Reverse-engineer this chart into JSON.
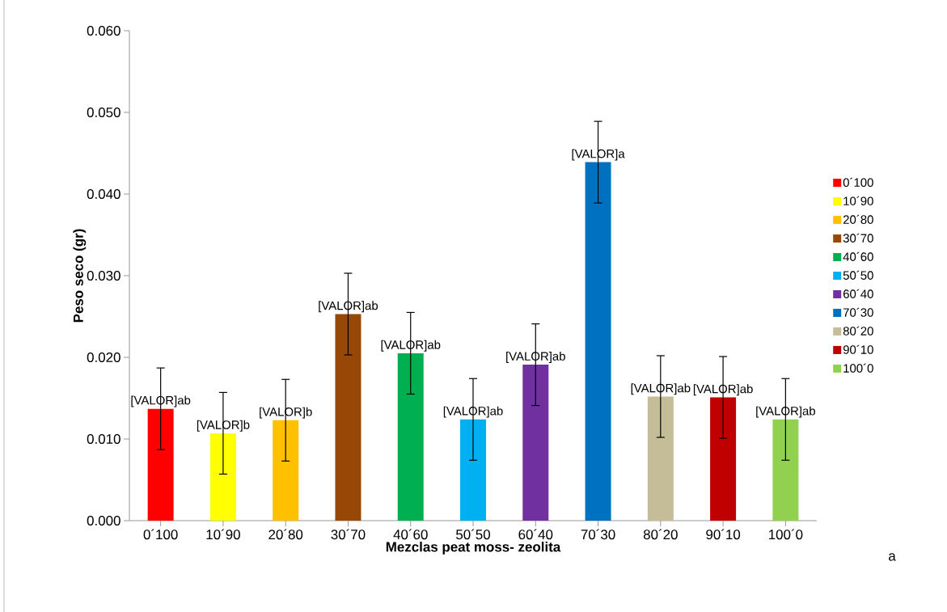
{
  "chart_data": {
    "type": "bar",
    "xlabel": "Mezclas peat moss- zeolita",
    "ylabel": "Peso seco (gr)",
    "categories": [
      "0´100",
      "10´90",
      "20´80",
      "30´70",
      "40´60",
      "50´50",
      "60´40",
      "70´30",
      "80´20",
      "90´10",
      "100´0"
    ],
    "series": [
      {
        "name": "0´100",
        "color": "#ff0000",
        "values": [
          0.0137,
          null,
          null,
          null,
          null,
          null,
          null,
          null,
          null,
          null,
          null
        ],
        "errors": [
          0.005,
          null,
          null,
          null,
          null,
          null,
          null,
          null,
          null,
          null,
          null
        ],
        "value_labels": [
          "[VALOR]ab",
          null,
          null,
          null,
          null,
          null,
          null,
          null,
          null,
          null,
          null
        ]
      },
      {
        "name": "10´90",
        "color": "#ffff00",
        "values": [
          null,
          0.0107,
          null,
          null,
          null,
          null,
          null,
          null,
          null,
          null,
          null
        ],
        "errors": [
          null,
          0.005,
          null,
          null,
          null,
          null,
          null,
          null,
          null,
          null,
          null
        ],
        "value_labels": [
          null,
          "[VALOR]b",
          null,
          null,
          null,
          null,
          null,
          null,
          null,
          null,
          null
        ]
      },
      {
        "name": "20´80",
        "color": "#ffc000",
        "values": [
          null,
          null,
          0.0123,
          null,
          null,
          null,
          null,
          null,
          null,
          null,
          null
        ],
        "errors": [
          null,
          null,
          0.005,
          null,
          null,
          null,
          null,
          null,
          null,
          null,
          null
        ],
        "value_labels": [
          null,
          null,
          "[VALOR]b",
          null,
          null,
          null,
          null,
          null,
          null,
          null,
          null
        ]
      },
      {
        "name": "30´70",
        "color": "#974706",
        "values": [
          null,
          null,
          null,
          0.0253,
          null,
          null,
          null,
          null,
          null,
          null,
          null
        ],
        "errors": [
          null,
          null,
          null,
          0.005,
          null,
          null,
          null,
          null,
          null,
          null,
          null
        ],
        "value_labels": [
          null,
          null,
          null,
          "[VALOR]ab",
          null,
          null,
          null,
          null,
          null,
          null,
          null
        ]
      },
      {
        "name": "40´60",
        "color": "#00b050",
        "values": [
          null,
          null,
          null,
          null,
          0.0205,
          null,
          null,
          null,
          null,
          null,
          null
        ],
        "errors": [
          null,
          null,
          null,
          null,
          0.005,
          null,
          null,
          null,
          null,
          null,
          null
        ],
        "value_labels": [
          null,
          null,
          null,
          null,
          "[VALOR]ab",
          null,
          null,
          null,
          null,
          null,
          null
        ]
      },
      {
        "name": "50´50",
        "color": "#00b0f0",
        "values": [
          null,
          null,
          null,
          null,
          null,
          0.0124,
          null,
          null,
          null,
          null,
          null
        ],
        "errors": [
          null,
          null,
          null,
          null,
          null,
          0.005,
          null,
          null,
          null,
          null,
          null
        ],
        "value_labels": [
          null,
          null,
          null,
          null,
          null,
          "[VALOR]ab",
          null,
          null,
          null,
          null,
          null
        ]
      },
      {
        "name": "60´40",
        "color": "#7030a0",
        "values": [
          null,
          null,
          null,
          null,
          null,
          null,
          0.0191,
          null,
          null,
          null,
          null
        ],
        "errors": [
          null,
          null,
          null,
          null,
          null,
          null,
          0.005,
          null,
          null,
          null,
          null
        ],
        "value_labels": [
          null,
          null,
          null,
          null,
          null,
          null,
          "[VALOR]ab",
          null,
          null,
          null,
          null
        ]
      },
      {
        "name": "70´30",
        "color": "#0070c0",
        "values": [
          null,
          null,
          null,
          null,
          null,
          null,
          null,
          0.0439,
          null,
          null,
          null
        ],
        "errors": [
          null,
          null,
          null,
          null,
          null,
          null,
          null,
          0.005,
          null,
          null,
          null
        ],
        "value_labels": [
          null,
          null,
          null,
          null,
          null,
          null,
          null,
          "[VALOR]a",
          null,
          null,
          null
        ]
      },
      {
        "name": "80´20",
        "color": "#c4bd97",
        "values": [
          null,
          null,
          null,
          null,
          null,
          null,
          null,
          null,
          0.0152,
          null,
          null
        ],
        "errors": [
          null,
          null,
          null,
          null,
          null,
          null,
          null,
          null,
          0.005,
          null,
          null
        ],
        "value_labels": [
          null,
          null,
          null,
          null,
          null,
          null,
          null,
          null,
          "[VALOR]ab",
          null,
          null
        ]
      },
      {
        "name": "90´10",
        "color": "#c00000",
        "values": [
          null,
          null,
          null,
          null,
          null,
          null,
          null,
          null,
          null,
          0.0151,
          null
        ],
        "errors": [
          null,
          null,
          null,
          null,
          null,
          null,
          null,
          null,
          null,
          0.005,
          null
        ],
        "value_labels": [
          null,
          null,
          null,
          null,
          null,
          null,
          null,
          null,
          null,
          "[VALOR]ab",
          null
        ]
      },
      {
        "name": "100´0",
        "color": "#92d050",
        "values": [
          null,
          null,
          null,
          null,
          null,
          null,
          null,
          null,
          null,
          null,
          0.0124
        ],
        "errors": [
          null,
          null,
          null,
          null,
          null,
          null,
          null,
          null,
          null,
          null,
          0.005
        ],
        "value_labels": [
          null,
          null,
          null,
          null,
          null,
          null,
          null,
          null,
          null,
          null,
          "[VALOR]ab"
        ]
      }
    ],
    "ylim": [
      0,
      0.06
    ],
    "yticks": [
      {
        "value": 0,
        "label": "0.000"
      },
      {
        "value": 0.01,
        "label": "0.010"
      },
      {
        "value": 0.02,
        "label": "0.020"
      },
      {
        "value": 0.03,
        "label": "0.030"
      },
      {
        "value": 0.04,
        "label": "0.040"
      },
      {
        "value": 0.05,
        "label": "0.050"
      },
      {
        "value": 0.06,
        "label": "0.060"
      }
    ],
    "legend": "right",
    "annotations": [
      "a"
    ]
  }
}
